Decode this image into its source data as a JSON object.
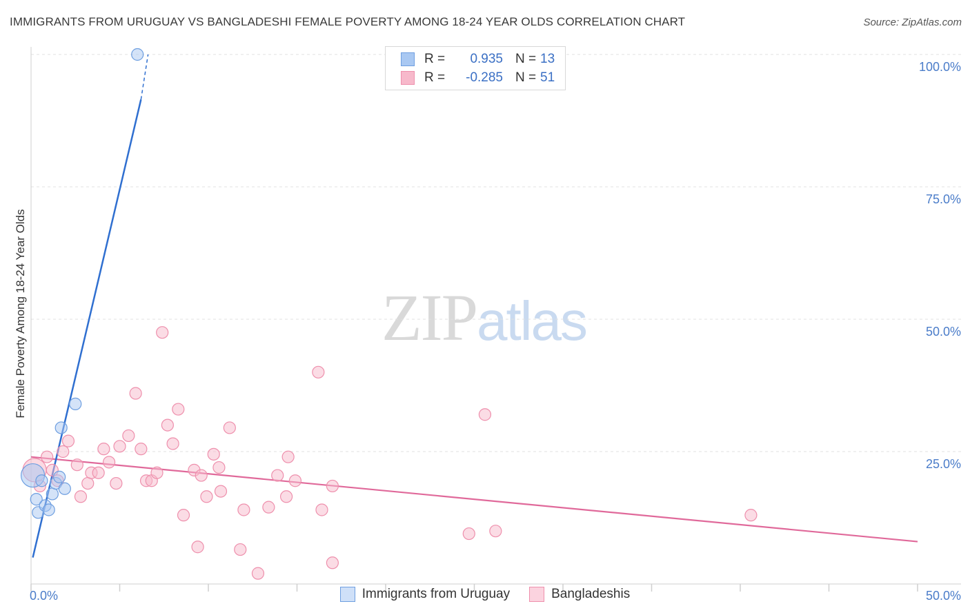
{
  "title": "IMMIGRANTS FROM URUGUAY VS BANGLADESHI FEMALE POVERTY AMONG 18-24 YEAR OLDS CORRELATION CHART",
  "source": "Source: ZipAtlas.com",
  "watermark": {
    "part1": "ZIP",
    "part2": "atlas"
  },
  "legend": {
    "rows": [
      {
        "r_label": "R =",
        "r_value": "0.935",
        "n_label": "N =",
        "n_value": "13"
      },
      {
        "r_label": "R =",
        "r_value": "-0.285",
        "n_label": "N =",
        "n_value": "51"
      }
    ]
  },
  "bottom_legend": [
    "Immigrants from Uruguay",
    "Bangladeshis"
  ],
  "colors": {
    "uruguay_fill": "#a9c8f2",
    "uruguay_stroke": "#6d9ee0",
    "uruguay_line": "#2f6fd0",
    "bangla_fill": "#f7b9cb",
    "bangla_stroke": "#ee8fac",
    "bangla_line": "#e0699a",
    "tick_text": "#4a7cc9",
    "grid": "#e0e0e0"
  },
  "chart_data": {
    "type": "scatter",
    "title": "IMMIGRANTS FROM URUGUAY VS BANGLADESHI FEMALE POVERTY AMONG 18-24 YEAR OLDS CORRELATION CHART",
    "xlabel": "",
    "ylabel": "Female Poverty Among 18-24 Year Olds",
    "xlim": [
      0,
      50
    ],
    "ylim": [
      0,
      100
    ],
    "x_tick_labels": [
      "0.0%",
      "50.0%"
    ],
    "y_ticks": [
      25,
      50,
      75,
      100
    ],
    "y_tick_labels": [
      "25.0%",
      "50.0%",
      "75.0%",
      "100.0%"
    ],
    "series": [
      {
        "name": "Immigrants from Uruguay",
        "r": 0.935,
        "n": 13,
        "points": [
          {
            "x": 0.1,
            "y": 20.5,
            "big": true
          },
          {
            "x": 0.3,
            "y": 16.0
          },
          {
            "x": 0.4,
            "y": 13.5
          },
          {
            "x": 0.6,
            "y": 19.5
          },
          {
            "x": 0.8,
            "y": 14.8
          },
          {
            "x": 1.0,
            "y": 14.0
          },
          {
            "x": 1.2,
            "y": 17.0
          },
          {
            "x": 1.4,
            "y": 19.0
          },
          {
            "x": 1.6,
            "y": 20.2
          },
          {
            "x": 1.7,
            "y": 29.5
          },
          {
            "x": 1.9,
            "y": 18.0
          },
          {
            "x": 2.5,
            "y": 34.0
          },
          {
            "x": 6.0,
            "y": 100.0
          }
        ],
        "trend": {
          "x0": 0.1,
          "y0": 5.0,
          "x1": 6.2,
          "y1": 91.5,
          "dash_x1": 6.6,
          "dash_y1": 100.0
        }
      },
      {
        "name": "Bangladeshis",
        "r": -0.285,
        "n": 51,
        "points": [
          {
            "x": 0.2,
            "y": 21.5,
            "big": true
          },
          {
            "x": 0.5,
            "y": 18.5
          },
          {
            "x": 0.9,
            "y": 24.0
          },
          {
            "x": 1.2,
            "y": 21.5
          },
          {
            "x": 1.5,
            "y": 19.5
          },
          {
            "x": 1.8,
            "y": 25.0
          },
          {
            "x": 2.1,
            "y": 27.0
          },
          {
            "x": 2.6,
            "y": 22.5
          },
          {
            "x": 2.8,
            "y": 16.5
          },
          {
            "x": 3.2,
            "y": 19.0
          },
          {
            "x": 3.4,
            "y": 21.0
          },
          {
            "x": 3.8,
            "y": 21.0
          },
          {
            "x": 4.1,
            "y": 25.5
          },
          {
            "x": 4.4,
            "y": 23.0
          },
          {
            "x": 4.8,
            "y": 19.0
          },
          {
            "x": 5.0,
            "y": 26.0
          },
          {
            "x": 5.5,
            "y": 28.0
          },
          {
            "x": 5.9,
            "y": 36.0
          },
          {
            "x": 6.2,
            "y": 25.5
          },
          {
            "x": 6.5,
            "y": 19.5
          },
          {
            "x": 6.8,
            "y": 19.5
          },
          {
            "x": 7.1,
            "y": 21.0
          },
          {
            "x": 7.4,
            "y": 47.5
          },
          {
            "x": 7.7,
            "y": 30.0
          },
          {
            "x": 8.0,
            "y": 26.5
          },
          {
            "x": 8.3,
            "y": 33.0
          },
          {
            "x": 8.6,
            "y": 13.0
          },
          {
            "x": 9.2,
            "y": 21.5
          },
          {
            "x": 9.4,
            "y": 7.0
          },
          {
            "x": 9.6,
            "y": 20.5
          },
          {
            "x": 9.9,
            "y": 16.5
          },
          {
            "x": 10.3,
            "y": 24.5
          },
          {
            "x": 10.6,
            "y": 22.0
          },
          {
            "x": 10.7,
            "y": 17.5
          },
          {
            "x": 11.2,
            "y": 29.5
          },
          {
            "x": 11.8,
            "y": 6.5
          },
          {
            "x": 12.0,
            "y": 14.0
          },
          {
            "x": 12.8,
            "y": 2.0
          },
          {
            "x": 13.4,
            "y": 14.5
          },
          {
            "x": 13.9,
            "y": 20.5
          },
          {
            "x": 14.4,
            "y": 16.5
          },
          {
            "x": 14.5,
            "y": 24.0
          },
          {
            "x": 14.9,
            "y": 19.5
          },
          {
            "x": 16.2,
            "y": 40.0
          },
          {
            "x": 16.4,
            "y": 14.0
          },
          {
            "x": 17.0,
            "y": 18.5
          },
          {
            "x": 17.0,
            "y": 4.0
          },
          {
            "x": 24.7,
            "y": 9.5
          },
          {
            "x": 25.6,
            "y": 32.0
          },
          {
            "x": 26.2,
            "y": 10.0
          },
          {
            "x": 40.6,
            "y": 13.0
          }
        ],
        "trend": {
          "x0": 0.0,
          "y0": 24.0,
          "x1": 50.0,
          "y1": 8.0
        }
      }
    ]
  }
}
